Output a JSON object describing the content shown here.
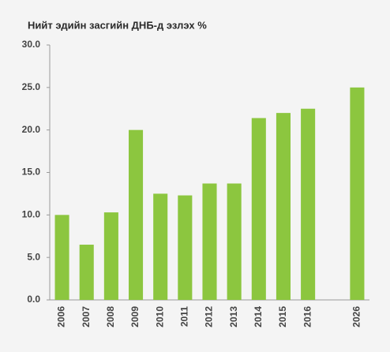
{
  "chart_data": {
    "type": "bar",
    "title": "Нийт эдийн засгийн ДНБ-д эзлэх %",
    "categories": [
      "2006",
      "2007",
      "2008",
      "2009",
      "2010",
      "2011",
      "2012",
      "2013",
      "2014",
      "2015",
      "2016",
      null,
      "2026"
    ],
    "values": [
      10.0,
      6.5,
      10.3,
      20.0,
      12.5,
      12.3,
      13.7,
      13.7,
      21.4,
      22.0,
      22.5,
      null,
      25.0
    ],
    "color": "#8cc63f",
    "ylim": [
      0,
      30
    ],
    "yticks": [
      {
        "value": 0,
        "label": "0.0"
      },
      {
        "value": 5,
        "label": "5.0"
      },
      {
        "value": 10,
        "label": "10.0"
      },
      {
        "value": 15,
        "label": "15.0"
      },
      {
        "value": 20,
        "label": "20.0"
      },
      {
        "value": 25,
        "label": "25.0"
      },
      {
        "value": 30,
        "label": "30.0"
      }
    ],
    "grid": false
  }
}
